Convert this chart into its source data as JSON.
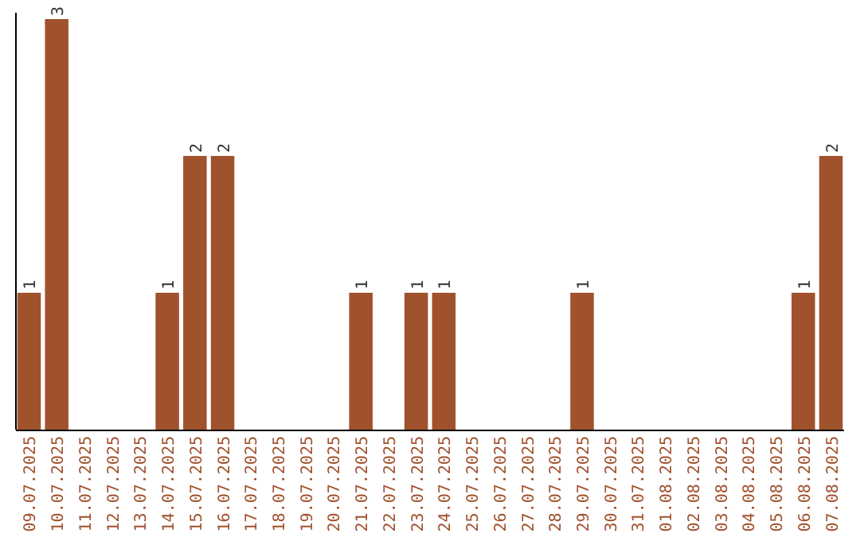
{
  "chart_data": {
    "type": "bar",
    "categories": [
      "09.07.2025",
      "10.07.2025",
      "11.07.2025",
      "12.07.2025",
      "13.07.2025",
      "14.07.2025",
      "15.07.2025",
      "16.07.2025",
      "17.07.2025",
      "18.07.2025",
      "19.07.2025",
      "20.07.2025",
      "21.07.2025",
      "22.07.2025",
      "23.07.2025",
      "24.07.2025",
      "25.07.2025",
      "26.07.2025",
      "27.07.2025",
      "28.07.2025",
      "29.07.2025",
      "30.07.2025",
      "31.07.2025",
      "01.08.2025",
      "02.08.2025",
      "03.08.2025",
      "04.08.2025",
      "05.08.2025",
      "06.08.2025",
      "07.08.2025"
    ],
    "values": [
      1,
      3,
      null,
      null,
      null,
      1,
      2,
      2,
      null,
      null,
      null,
      null,
      1,
      null,
      1,
      1,
      null,
      null,
      null,
      null,
      1,
      null,
      null,
      null,
      null,
      null,
      null,
      null,
      1,
      2
    ],
    "color": "#a0522d",
    "data_labels": true
  }
}
